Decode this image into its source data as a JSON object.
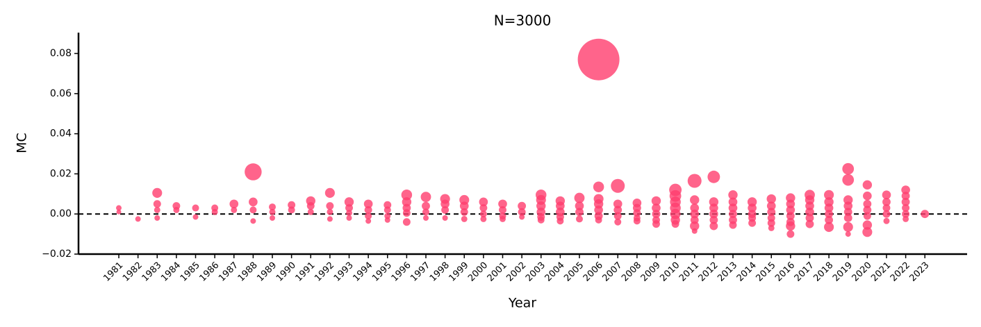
{
  "chart_data": {
    "type": "scatter",
    "title": "N=3000",
    "x_label": "Year",
    "y_label": "MC",
    "color": "#ff3d6e",
    "hline": 0,
    "xlim": [
      1978.9,
      2025.2
    ],
    "xticks": [
      1981,
      1982,
      1983,
      1984,
      1985,
      1986,
      1987,
      1988,
      1989,
      1990,
      1991,
      1992,
      1993,
      1994,
      1995,
      1996,
      1997,
      1998,
      1999,
      2000,
      2001,
      2002,
      2003,
      2004,
      2005,
      2006,
      2007,
      2008,
      2009,
      2010,
      2011,
      2012,
      2013,
      2014,
      2015,
      2016,
      2017,
      2018,
      2019,
      2020,
      2021,
      2022,
      2023
    ],
    "ylim": [
      -0.02,
      0.0904
    ],
    "yticks": [
      {
        "value": -0.02,
        "label": "−0.02"
      },
      {
        "value": 0,
        "label": "0.00"
      },
      0.02,
      0.04,
      0.06,
      0.08
    ],
    "x": [
      1981,
      1981,
      1982,
      1983,
      1983,
      1983,
      1983,
      1984,
      1984,
      1985,
      1985,
      1986,
      1986,
      1987,
      1987,
      1988,
      1988,
      1988,
      1988,
      1989,
      1989,
      1989,
      1990,
      1990,
      1991,
      1991,
      1991,
      1992,
      1992,
      1992,
      1992,
      1993,
      1993,
      1993,
      1993,
      1994,
      1994,
      1994,
      1994,
      1995,
      1995,
      1995,
      1995,
      1996,
      1996,
      1996,
      1996,
      1996,
      1997,
      1997,
      1997,
      1997,
      1998,
      1998,
      1998,
      1998,
      1999,
      1999,
      1999,
      1999,
      2000,
      2000,
      2000,
      2000,
      2001,
      2001,
      2001,
      2001,
      2002,
      2002,
      2002,
      2003,
      2003,
      2003,
      2003,
      2003,
      2003,
      2004,
      2004,
      2004,
      2004,
      2004,
      2005,
      2005,
      2005,
      2005,
      2006,
      2006,
      2006,
      2006,
      2006,
      2006,
      2006,
      2007,
      2007,
      2007,
      2007,
      2007,
      2008,
      2008,
      2008,
      2008,
      2008,
      2009,
      2009,
      2009,
      2009,
      2009,
      2010,
      2010,
      2010,
      2010,
      2010,
      2010,
      2010,
      2011,
      2011,
      2011,
      2011,
      2011,
      2011,
      2011,
      2012,
      2012,
      2012,
      2012,
      2012,
      2012,
      2013,
      2013,
      2013,
      2013,
      2013,
      2013,
      2014,
      2014,
      2014,
      2014,
      2014,
      2015,
      2015,
      2015,
      2015,
      2015,
      2015,
      2016,
      2016,
      2016,
      2016,
      2016,
      2016,
      2016,
      2017,
      2017,
      2017,
      2017,
      2017,
      2017,
      2018,
      2018,
      2018,
      2018,
      2018,
      2018,
      2019,
      2019,
      2019,
      2019,
      2019,
      2019,
      2019,
      2019,
      2020,
      2020,
      2020,
      2020,
      2020,
      2020,
      2020,
      2021,
      2021,
      2021,
      2021,
      2021,
      2022,
      2022,
      2022,
      2022,
      2022,
      2022,
      2023
    ],
    "y": [
      0.003,
      0.001,
      -0.0025,
      0.0105,
      0.005,
      0.002,
      -0.002,
      0.004,
      0.002,
      0.003,
      -0.0015,
      0.003,
      0.001,
      0.005,
      0.002,
      0.021,
      0.006,
      0.002,
      -0.0035,
      0.0035,
      0.001,
      -0.002,
      0.0045,
      0.002,
      0.0065,
      0.004,
      0.001,
      0.0105,
      0.004,
      0.001,
      -0.0025,
      0.006,
      0.003,
      0.0005,
      -0.002,
      0.005,
      0.002,
      -0.001,
      -0.0035,
      0.0045,
      0.002,
      -0.001,
      -0.003,
      0.0095,
      0.006,
      0.003,
      0.0005,
      -0.004,
      0.0085,
      0.004,
      0.001,
      -0.002,
      0.0075,
      0.005,
      0.002,
      -0.002,
      0.007,
      0.004,
      0.001,
      -0.0025,
      0.006,
      0.003,
      0,
      -0.0025,
      0.005,
      0.002,
      -0.001,
      -0.0025,
      0.004,
      0.001,
      -0.0015,
      0.0095,
      0.007,
      0.004,
      0.001,
      -0.0015,
      -0.003,
      0.0065,
      0.004,
      0.001,
      -0.0015,
      -0.0035,
      0.008,
      0.004,
      0.001,
      -0.0025,
      0.077,
      0.0135,
      0.0075,
      0.005,
      0.002,
      -0.001,
      -0.003,
      0.014,
      0.005,
      0.002,
      -0.001,
      -0.004,
      0.0055,
      0.003,
      0.0005,
      -0.002,
      -0.0035,
      0.0065,
      0.003,
      0,
      -0.003,
      -0.005,
      0.012,
      0.009,
      0.006,
      0.003,
      0,
      -0.003,
      -0.005,
      0.0165,
      0.007,
      0.003,
      0,
      -0.003,
      -0.006,
      -0.0085,
      0.0185,
      0.006,
      0.003,
      0,
      -0.003,
      -0.006,
      0.0095,
      0.006,
      0.003,
      0,
      -0.003,
      -0.0055,
      0.006,
      0.003,
      0,
      -0.002,
      -0.0045,
      0.0075,
      0.004,
      0.001,
      -0.002,
      -0.0045,
      -0.007,
      0.008,
      0.005,
      0.002,
      -0.001,
      -0.004,
      -0.006,
      -0.01,
      0.0095,
      0.007,
      0.004,
      0.001,
      -0.002,
      -0.005,
      0.0095,
      0.006,
      0.003,
      0,
      -0.003,
      -0.0065,
      0.0225,
      0.017,
      0.007,
      0.004,
      0.001,
      -0.002,
      -0.0065,
      -0.01,
      0.0145,
      0.009,
      0.005,
      0.002,
      -0.001,
      -0.0055,
      -0.009,
      0.0095,
      0.006,
      0.003,
      0,
      -0.0035,
      0.012,
      0.009,
      0.006,
      0.003,
      0,
      -0.0025,
      0
    ],
    "sizes": [
      16,
      12,
      16,
      50,
      30,
      20,
      16,
      30,
      20,
      25,
      16,
      25,
      20,
      40,
      20,
      150,
      40,
      25,
      16,
      25,
      20,
      16,
      30,
      25,
      45,
      30,
      20,
      50,
      30,
      20,
      16,
      45,
      30,
      20,
      16,
      40,
      30,
      25,
      16,
      30,
      25,
      20,
      16,
      60,
      45,
      35,
      30,
      30,
      55,
      35,
      25,
      16,
      50,
      40,
      30,
      16,
      50,
      40,
      30,
      20,
      40,
      30,
      25,
      20,
      40,
      30,
      25,
      20,
      35,
      30,
      16,
      60,
      50,
      45,
      40,
      30,
      25,
      45,
      40,
      40,
      30,
      25,
      55,
      40,
      35,
      25,
      900,
      60,
      50,
      45,
      40,
      35,
      25,
      100,
      40,
      35,
      30,
      25,
      40,
      35,
      30,
      25,
      25,
      45,
      40,
      35,
      30,
      30,
      80,
      70,
      60,
      60,
      55,
      45,
      30,
      100,
      45,
      40,
      40,
      35,
      45,
      16,
      80,
      45,
      40,
      40,
      35,
      35,
      45,
      40,
      40,
      35,
      35,
      30,
      45,
      40,
      35,
      30,
      30,
      45,
      40,
      35,
      30,
      30,
      20,
      45,
      40,
      40,
      35,
      35,
      45,
      30,
      55,
      45,
      40,
      40,
      35,
      35,
      50,
      45,
      40,
      35,
      35,
      50,
      70,
      70,
      45,
      40,
      35,
      35,
      50,
      16,
      45,
      40,
      35,
      35,
      30,
      45,
      50,
      40,
      35,
      30,
      30,
      20,
      40,
      35,
      35,
      30,
      30,
      20,
      35
    ]
  }
}
